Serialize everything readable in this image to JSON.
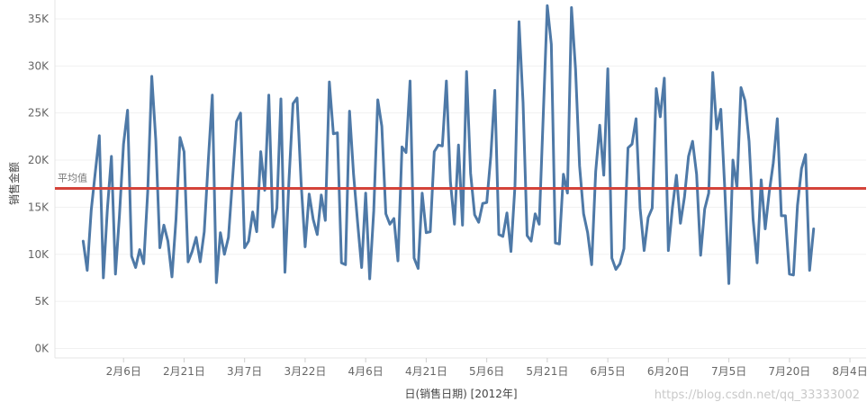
{
  "chart_data": {
    "type": "line",
    "xlabel": "日(销售日期) [2012年]",
    "ylabel": "销售金额",
    "x_start": "2012-01-27",
    "x_end": "2012-07-26",
    "xlim": [
      "2012-01-20",
      "2012-08-08"
    ],
    "ylim": [
      -1000,
      37000
    ],
    "y_ticks": [
      0,
      5000,
      10000,
      15000,
      20000,
      25000,
      30000,
      35000
    ],
    "y_tick_labels": [
      "0K",
      "5K",
      "10K",
      "15K",
      "20K",
      "25K",
      "30K",
      "35K"
    ],
    "x_ticks": [
      "2012-02-06",
      "2012-02-21",
      "2012-03-07",
      "2012-03-22",
      "2012-04-06",
      "2012-04-21",
      "2012-05-06",
      "2012-05-21",
      "2012-06-05",
      "2012-06-20",
      "2012-07-05",
      "2012-07-20",
      "2012-08-04"
    ],
    "x_tick_labels": [
      "2月6日",
      "2月21日",
      "3月7日",
      "3月22日",
      "4月6日",
      "4月21日",
      "5月6日",
      "5月21日",
      "6月5日",
      "6月20日",
      "7月5日",
      "7月20日",
      "8月4日"
    ],
    "series": [
      {
        "color": "#4e79a7",
        "values": [
          11400,
          8300,
          14700,
          18700,
          22600,
          7500,
          14800,
          20400,
          7900,
          14200,
          21700,
          25300,
          9800,
          8600,
          10500,
          9000,
          16700,
          28900,
          22100,
          10700,
          13100,
          11400,
          7600,
          13700,
          22400,
          20900,
          9200,
          10300,
          11800,
          9200,
          12400,
          19900,
          26900,
          7000,
          12300,
          10000,
          11800,
          17900,
          24100,
          25000,
          10700,
          11400,
          14500,
          12400,
          20900,
          16800,
          26900,
          12900,
          14900,
          26500,
          8100,
          17900,
          26000,
          26600,
          17600,
          10800,
          16400,
          13700,
          12100,
          16300,
          13600,
          28300,
          22800,
          22900,
          9100,
          8900,
          25200,
          18500,
          13400,
          8600,
          16500,
          7400,
          14600,
          26400,
          23600,
          14300,
          13200,
          13800,
          9300,
          21400,
          20800,
          28400,
          9600,
          8500,
          16500,
          12300,
          12400,
          20900,
          21600,
          21500,
          28400,
          17700,
          13200,
          21600,
          13100,
          29400,
          18600,
          14200,
          13400,
          15400,
          15500,
          20400,
          27400,
          12100,
          11900,
          14400,
          10300,
          17300,
          34700,
          26100,
          12000,
          11400,
          14300,
          13200,
          24700,
          36400,
          32300,
          11200,
          11100,
          18500,
          16500,
          36200,
          29700,
          19400,
          14300,
          12300,
          8900,
          18800,
          23700,
          18400,
          29700,
          9600,
          8400,
          9000,
          10600,
          21300,
          21700,
          24400,
          14900,
          10400,
          13900,
          14900,
          27600,
          24600,
          28700,
          10400,
          14900,
          18400,
          13300,
          16100,
          20400,
          22000,
          18500,
          9900,
          14800,
          16500,
          29300,
          23300,
          25400,
          16800,
          6900,
          20000,
          17100,
          27700,
          26300,
          22000,
          13700,
          9100,
          17900,
          12700,
          16600,
          19700,
          24400,
          14100,
          14100,
          7900,
          7800,
          15200,
          19100,
          20600,
          8300,
          12700
        ]
      }
    ],
    "reference_line": {
      "label": "平均值",
      "value": 17000,
      "color": "#d4433a"
    },
    "grid": {
      "horizontal": true,
      "vertical": false
    }
  },
  "watermark": "https://blog.csdn.net/qq_33333002"
}
